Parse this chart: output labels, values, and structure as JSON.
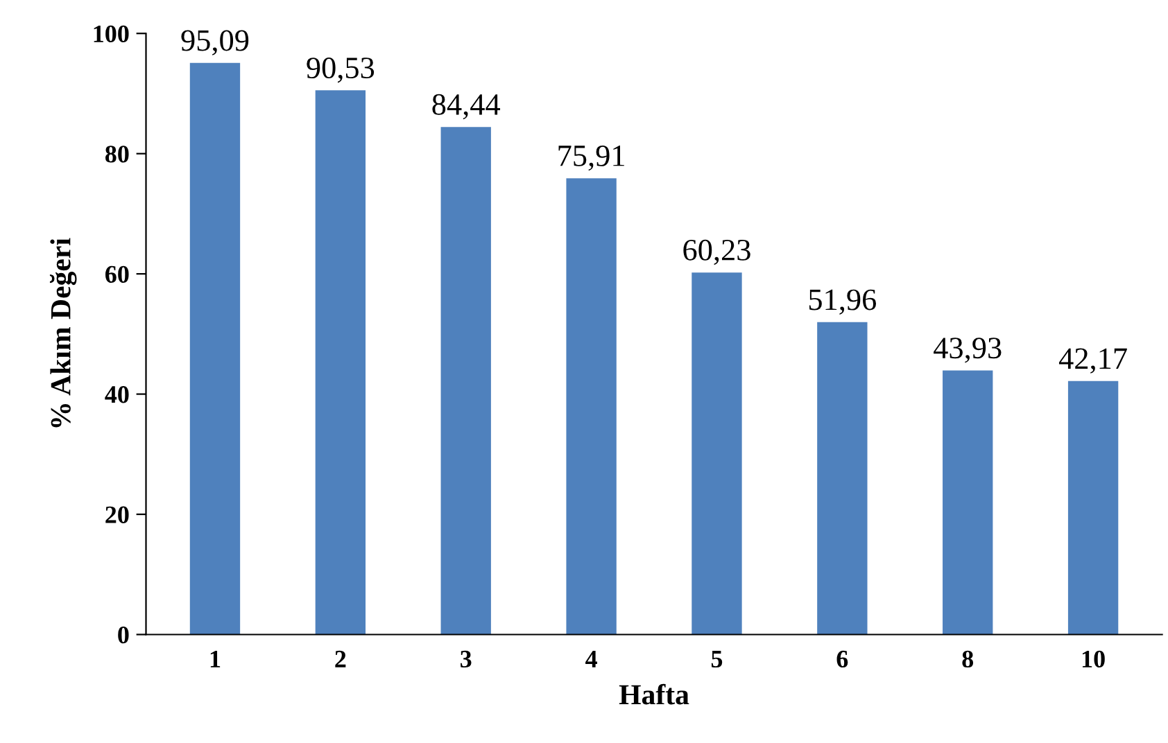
{
  "chart_data": {
    "type": "bar",
    "xlabel": "Hafta",
    "ylabel": "% Akım Değeri",
    "categories": [
      "1",
      "2",
      "3",
      "4",
      "5",
      "6",
      "8",
      "10"
    ],
    "values": [
      95.09,
      90.53,
      84.44,
      75.91,
      60.23,
      51.96,
      43.93,
      42.17
    ],
    "value_labels": [
      "95,09",
      "90,53",
      "84,44",
      "75,91",
      "60,23",
      "51,96",
      "43,93",
      "42,17"
    ],
    "color": "#4f81bd",
    "ylim": [
      0,
      100
    ],
    "yticks": [
      0,
      20,
      40,
      60,
      80,
      100
    ],
    "grid": false,
    "legend": false
  }
}
